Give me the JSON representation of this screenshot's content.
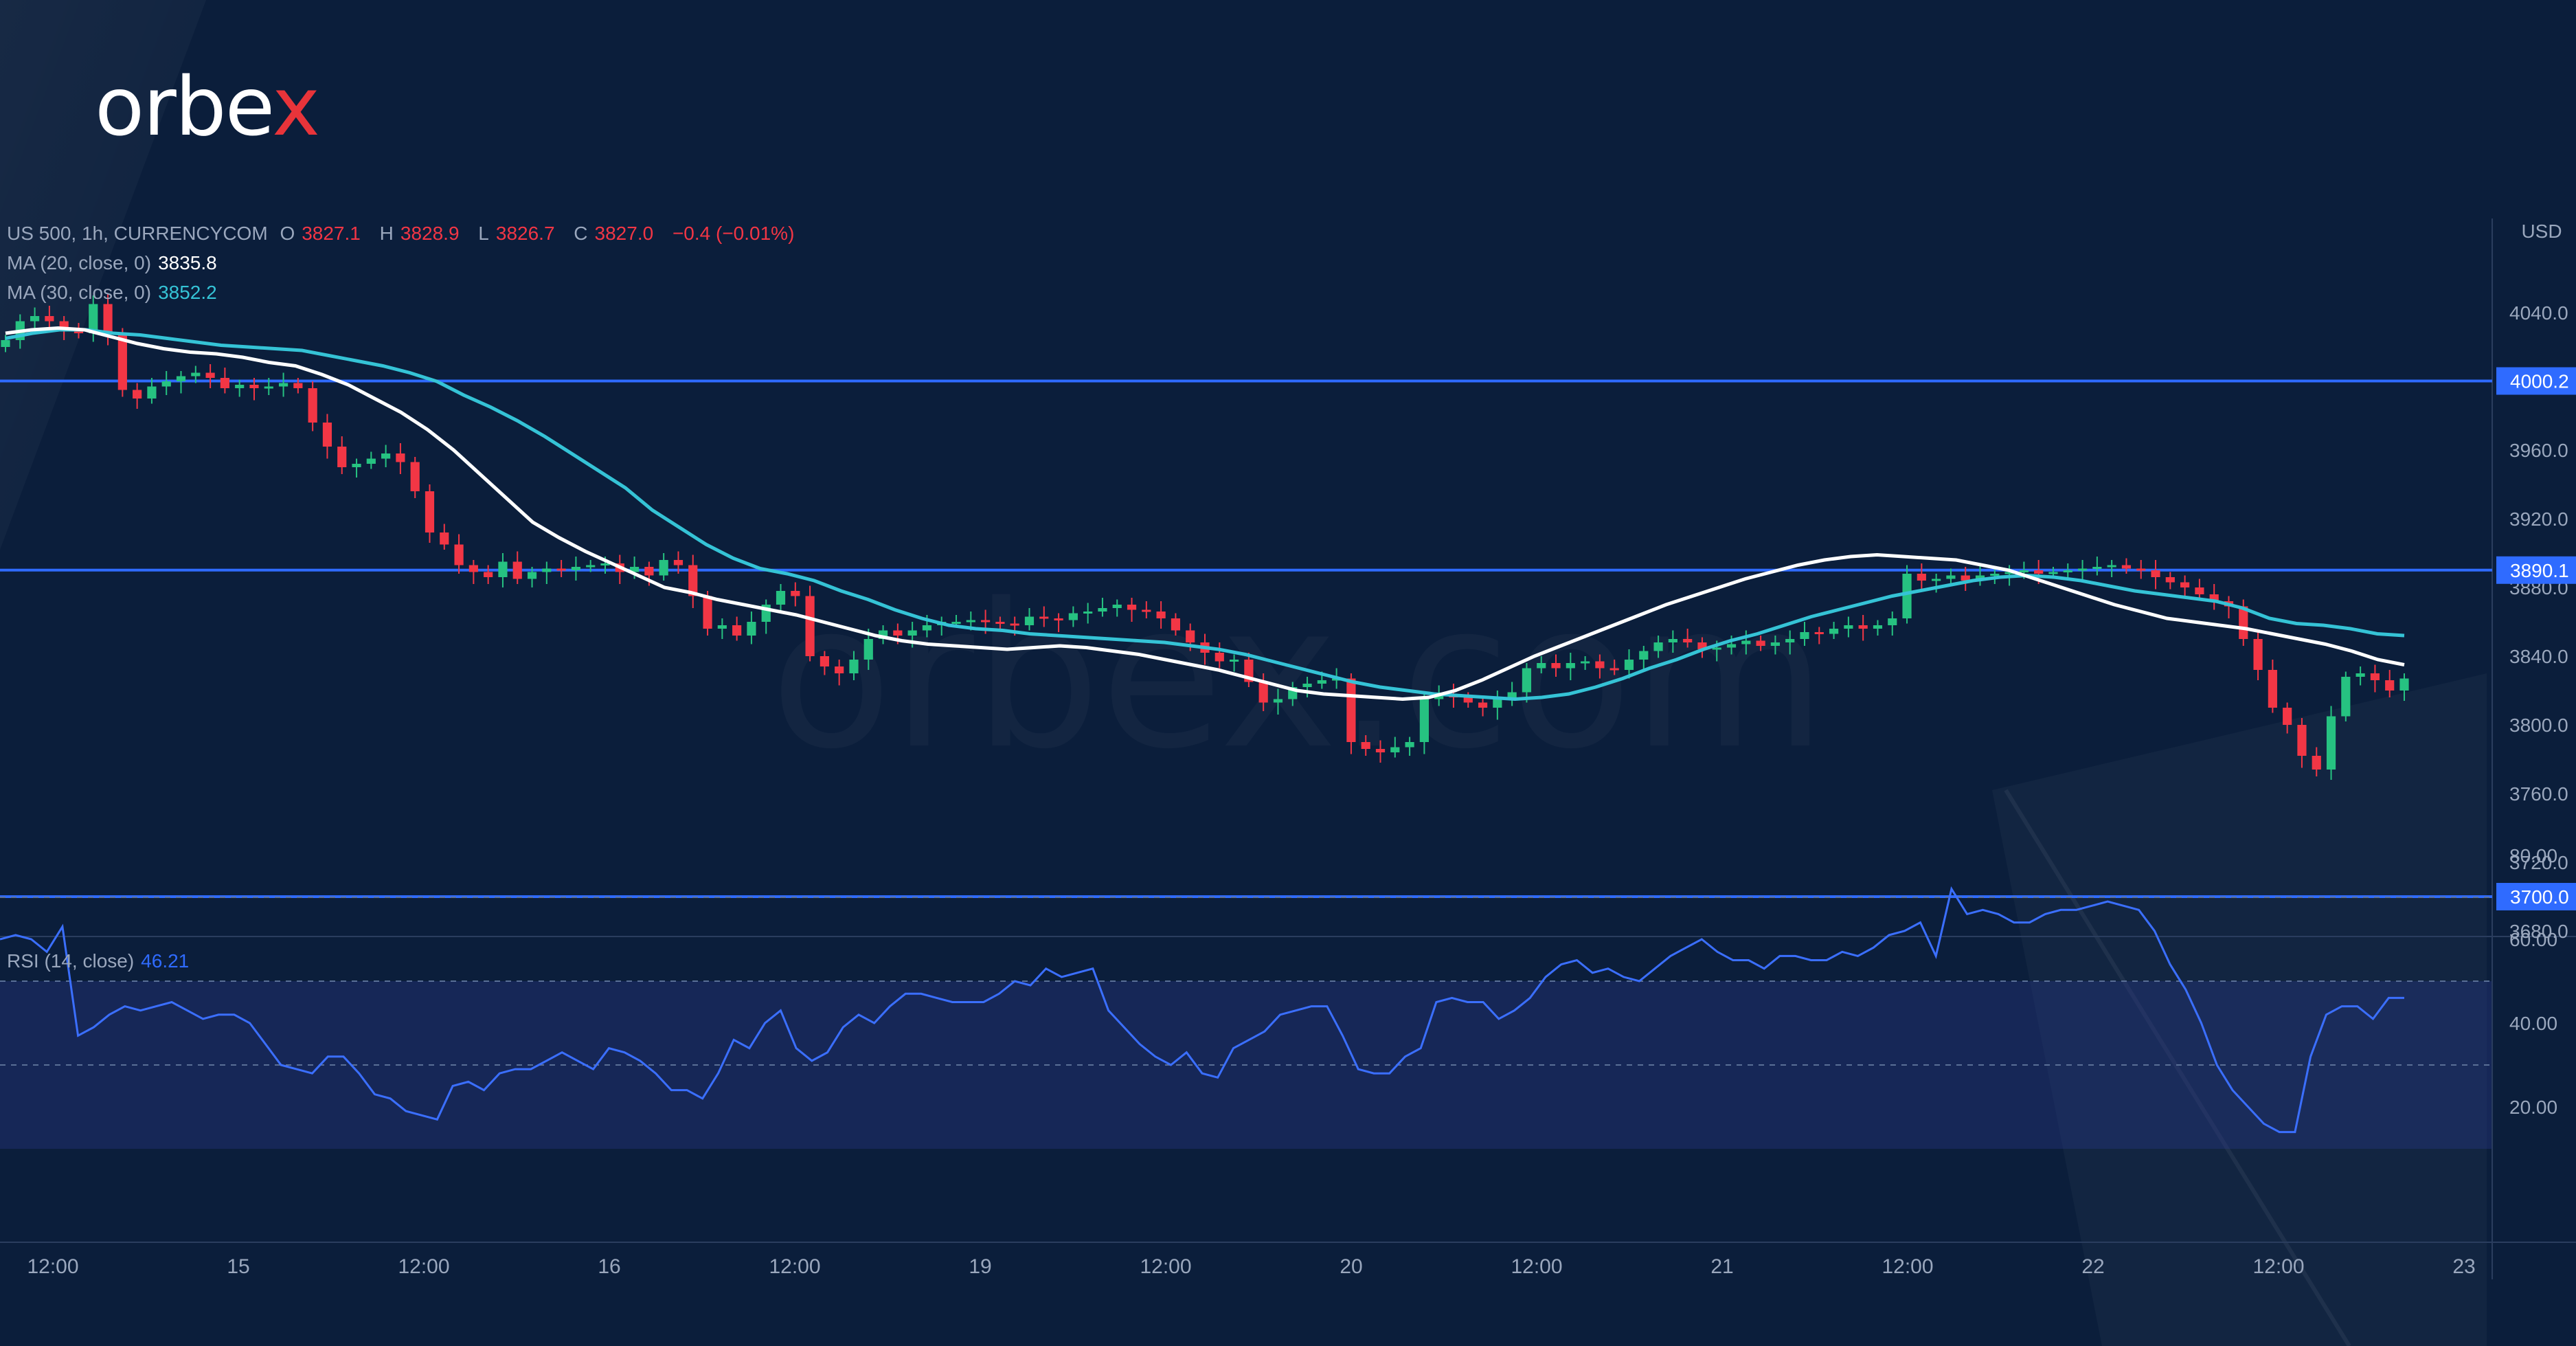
{
  "brand": {
    "name_main": "orbe",
    "name_accent": "x",
    "watermark": "orbex.com"
  },
  "symbol": {
    "name": "US 500, 1h, CURRENCYCOM",
    "open_label": "O",
    "open": "3827.1",
    "high_label": "H",
    "high": "3828.9",
    "low_label": "L",
    "low": "3826.7",
    "close_label": "C",
    "close": "3827.0",
    "change": "−0.4 (−0.01%)"
  },
  "indicators": {
    "ma20": {
      "label": "MA (20, close, 0)",
      "value": "3835.8"
    },
    "ma30": {
      "label": "MA (30, close, 0)",
      "value": "3852.2"
    },
    "rsi": {
      "label": "RSI (14, close)",
      "value": "46.21"
    }
  },
  "colors": {
    "background": "#0b1e3b",
    "up": "#26c281",
    "down": "#f23645",
    "ma20": "#ffffff",
    "ma30": "#35c3d6",
    "level_line": "#2f6bff",
    "rsi_line": "#3b6fff"
  },
  "chart_data": [
    {
      "type": "candlestick",
      "currency": "USD",
      "y_ticks": [
        "4040.0",
        "3960.0",
        "3920.0",
        "3880.0",
        "3840.0",
        "3800.0",
        "3760.0",
        "3720.0",
        "3680.0"
      ],
      "ylim": [
        3680,
        4060
      ],
      "x_ticks": [
        "12:00",
        "15",
        "12:00",
        "16",
        "12:00",
        "19",
        "12:00",
        "20",
        "12:00",
        "21",
        "12:00",
        "22",
        "12:00",
        "23"
      ],
      "horizontal_levels": [
        {
          "label": "4000.2",
          "value": 4000.2
        },
        {
          "label": "3890.1",
          "value": 3890.1
        },
        {
          "label": "3700.0",
          "value": 3700.0
        }
      ],
      "candles_close": [
        4024,
        4035,
        4038,
        4035,
        4030,
        4028,
        4045,
        4028,
        3995,
        3990,
        3997,
        4000,
        4003,
        4005,
        4002,
        3996,
        3998,
        3996,
        3997,
        3999,
        3996,
        3976,
        3962,
        3950,
        3952,
        3955,
        3958,
        3953,
        3936,
        3912,
        3905,
        3893,
        3889,
        3886,
        3895,
        3885,
        3889,
        3891,
        3890,
        3892,
        3893,
        3894,
        3889,
        3892,
        3887,
        3896,
        3893,
        3875,
        3856,
        3858,
        3852,
        3860,
        3870,
        3878,
        3875,
        3840,
        3834,
        3830,
        3838,
        3850,
        3855,
        3852,
        3855,
        3858,
        3860,
        3860,
        3861,
        3860,
        3859,
        3858,
        3863,
        3862,
        3861,
        3865,
        3866,
        3868,
        3870,
        3867,
        3866,
        3862,
        3855,
        3848,
        3842,
        3837,
        3838,
        3825,
        3813,
        3815,
        3822,
        3824,
        3826,
        3827,
        3790,
        3786,
        3784,
        3787,
        3790,
        3815,
        3818,
        3816,
        3813,
        3810,
        3815,
        3819,
        3833,
        3836,
        3833,
        3836,
        3837,
        3833,
        3832,
        3838,
        3843,
        3848,
        3850,
        3848,
        3844,
        3845,
        3847,
        3849,
        3846,
        3848,
        3850,
        3854,
        3853,
        3856,
        3858,
        3856,
        3858,
        3862,
        3888,
        3884,
        3885,
        3887,
        3884,
        3887,
        3888,
        3889,
        3890,
        3888,
        3889,
        3890,
        3891,
        3892,
        3893,
        3891,
        3890,
        3886,
        3883,
        3880,
        3876,
        3872,
        3869,
        3850,
        3832,
        3810,
        3800,
        3782,
        3774,
        3805,
        3828,
        3830,
        3826,
        3820,
        3827
      ],
      "ma20": [
        4028,
        4030,
        4031,
        4030,
        4026,
        4022,
        4019,
        4017,
        4016,
        4014,
        4011,
        4009,
        4004,
        3998,
        3990,
        3982,
        3972,
        3960,
        3946,
        3932,
        3918,
        3909,
        3901,
        3894,
        3887,
        3880,
        3877,
        3873,
        3870,
        3867,
        3864,
        3860,
        3856,
        3852,
        3849,
        3847,
        3846,
        3845,
        3844,
        3845,
        3846,
        3845,
        3843,
        3841,
        3838,
        3835,
        3832,
        3828,
        3824,
        3820,
        3818,
        3817,
        3816,
        3815,
        3816,
        3820,
        3826,
        3833,
        3840,
        3846,
        3852,
        3858,
        3864,
        3870,
        3875,
        3880,
        3885,
        3889,
        3893,
        3896,
        3898,
        3899,
        3898,
        3897,
        3896,
        3893,
        3890,
        3885,
        3880,
        3875,
        3870,
        3866,
        3862,
        3860,
        3858,
        3856,
        3853,
        3850,
        3847,
        3843,
        3838,
        3835
      ],
      "ma30": [
        4025,
        4028,
        4030,
        4030,
        4028,
        4027,
        4025,
        4023,
        4021,
        4020,
        4019,
        4018,
        4015,
        4012,
        4009,
        4005,
        4000,
        3992,
        3985,
        3977,
        3968,
        3958,
        3948,
        3938,
        3925,
        3915,
        3905,
        3897,
        3891,
        3888,
        3884,
        3878,
        3873,
        3867,
        3862,
        3858,
        3856,
        3855,
        3853,
        3852,
        3851,
        3850,
        3849,
        3848,
        3846,
        3844,
        3841,
        3837,
        3833,
        3829,
        3825,
        3822,
        3820,
        3818,
        3817,
        3816,
        3815,
        3816,
        3818,
        3822,
        3827,
        3833,
        3838,
        3844,
        3849,
        3853,
        3858,
        3863,
        3867,
        3871,
        3875,
        3878,
        3881,
        3884,
        3886,
        3887,
        3886,
        3884,
        3881,
        3878,
        3876,
        3874,
        3872,
        3868,
        3862,
        3859,
        3858,
        3856,
        3853,
        3852
      ],
      "rsi_ticks": [
        "80.00",
        "60.00",
        "40.00",
        "20.00"
      ],
      "rsi_levels": [
        70,
        50,
        30
      ],
      "rsi_ylim": [
        0,
        100
      ],
      "rsi": [
        60,
        61,
        60,
        57,
        63,
        37,
        39,
        42,
        44,
        43,
        44,
        45,
        43,
        41,
        42,
        42,
        40,
        35,
        30,
        29,
        28,
        32,
        32,
        28,
        23,
        22,
        19,
        18,
        17,
        25,
        26,
        24,
        28,
        29,
        29,
        31,
        33,
        31,
        29,
        34,
        33,
        31,
        28,
        24,
        24,
        22,
        28,
        36,
        34,
        40,
        43,
        34,
        31,
        33,
        39,
        42,
        40,
        44,
        47,
        47,
        46,
        45,
        45,
        45,
        47,
        50,
        49,
        53,
        51,
        52,
        53,
        43,
        39,
        35,
        32,
        30,
        33,
        28,
        27,
        34,
        36,
        38,
        42,
        43,
        44,
        44,
        37,
        29,
        28,
        28,
        32,
        34,
        45,
        46,
        45,
        45,
        41,
        43,
        46,
        51,
        54,
        55,
        52,
        53,
        51,
        50,
        53,
        56,
        58,
        60,
        57,
        55,
        55,
        53,
        56,
        56,
        55,
        55,
        57,
        56,
        58,
        61,
        62,
        64,
        56,
        72,
        66,
        67,
        66,
        64,
        64,
        66,
        67,
        67,
        68,
        69,
        68,
        67,
        62,
        54,
        48,
        40,
        30,
        24,
        20,
        16,
        14,
        14,
        32,
        42,
        44,
        44,
        41,
        46,
        46
      ]
    }
  ]
}
